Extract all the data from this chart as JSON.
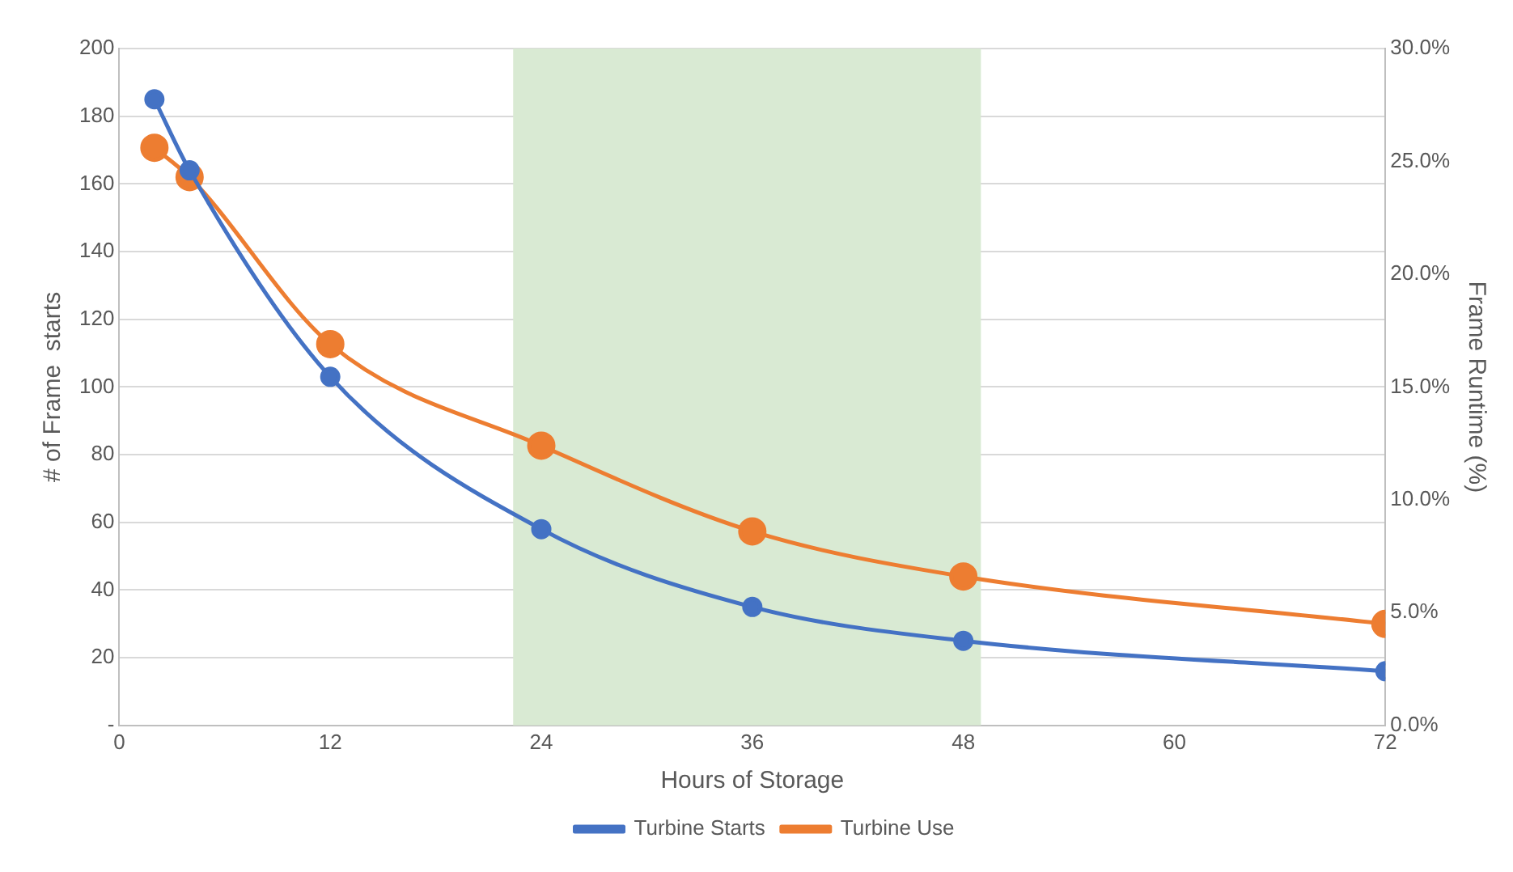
{
  "chart_data": {
    "type": "line",
    "xlabel": "Hours of Storage",
    "ylabel": "# of Frame  starts",
    "y2label": "Frame Runtime (%)",
    "x": [
      2,
      4,
      12,
      24,
      36,
      48,
      72
    ],
    "series": [
      {
        "name": "Turbine Starts",
        "color": "#4472c4",
        "values": [
          185,
          164,
          103,
          58,
          35,
          25,
          16
        ]
      },
      {
        "name": "Turbine Use",
        "color": "#ed7d31",
        "axis": "y2",
        "values": [
          25.6,
          24.3,
          16.9,
          12.4,
          8.6,
          6.6,
          4.5
        ]
      }
    ],
    "xlim": [
      0,
      72
    ],
    "xticks": [
      0,
      12,
      24,
      36,
      48,
      60,
      72
    ],
    "ylim": [
      0,
      200
    ],
    "yticks": [
      {
        "value": 0,
        "label": "-"
      },
      20,
      40,
      60,
      80,
      100,
      120,
      140,
      160,
      180,
      200
    ],
    "y2lim": [
      0,
      30
    ],
    "y2ticks": [
      {
        "value": 0,
        "label": "0.0%"
      },
      {
        "value": 5,
        "label": "5.0%"
      },
      {
        "value": 10,
        "label": "10.0%"
      },
      {
        "value": 15,
        "label": "15.0%"
      },
      {
        "value": 20,
        "label": "20.0%"
      },
      {
        "value": 25,
        "label": "25.0%"
      },
      {
        "value": 30,
        "label": "30.0%"
      }
    ],
    "bands": [
      {
        "axis": "x",
        "from": 22.4,
        "to": 49,
        "color": "#d9ead3"
      }
    ],
    "grid": "y",
    "legend": "bottom",
    "marker": "circle",
    "line_style": "solid"
  }
}
